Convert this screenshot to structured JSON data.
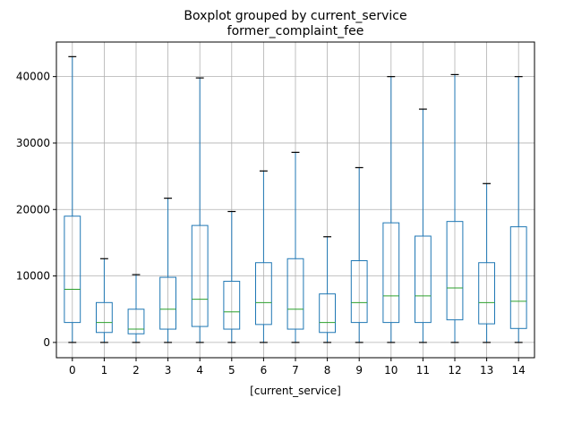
{
  "chart_data": {
    "type": "box",
    "title": "Boxplot grouped by current_service",
    "subtitle": "former_complaint_fee",
    "xlabel": "[current_service]",
    "ylabel": "",
    "ylim": [
      -2300,
      45200
    ],
    "yticks": [
      0,
      10000,
      20000,
      30000,
      40000
    ],
    "categories": [
      "0",
      "1",
      "2",
      "3",
      "4",
      "5",
      "6",
      "7",
      "8",
      "9",
      "10",
      "11",
      "12",
      "13",
      "14"
    ],
    "grid": true,
    "colors": {
      "box": "#1f77b4",
      "median": "#2ca02c",
      "whisker_cap": "#000000",
      "grid": "#b0b0b0",
      "axes": "#000000"
    },
    "boxes": [
      {
        "category": "0",
        "min": 0,
        "q1": 3000,
        "median": 8000,
        "q3": 19000,
        "max": 43000
      },
      {
        "category": "1",
        "min": 0,
        "q1": 1500,
        "median": 3000,
        "q3": 6000,
        "max": 12600
      },
      {
        "category": "2",
        "min": 0,
        "q1": 1300,
        "median": 2000,
        "q3": 5000,
        "max": 10200
      },
      {
        "category": "3",
        "min": 0,
        "q1": 2000,
        "median": 5000,
        "q3": 9800,
        "max": 21700
      },
      {
        "category": "4",
        "min": 0,
        "q1": 2400,
        "median": 6500,
        "q3": 17600,
        "max": 39800
      },
      {
        "category": "5",
        "min": 0,
        "q1": 2000,
        "median": 4600,
        "q3": 9200,
        "max": 19700
      },
      {
        "category": "6",
        "min": 0,
        "q1": 2700,
        "median": 6000,
        "q3": 12000,
        "max": 25800
      },
      {
        "category": "7",
        "min": 0,
        "q1": 2000,
        "median": 5000,
        "q3": 12600,
        "max": 28600
      },
      {
        "category": "8",
        "min": 0,
        "q1": 1500,
        "median": 3000,
        "q3": 7300,
        "max": 15900
      },
      {
        "category": "9",
        "min": 0,
        "q1": 3000,
        "median": 6000,
        "q3": 12300,
        "max": 26300
      },
      {
        "category": "10",
        "min": 0,
        "q1": 3000,
        "median": 7000,
        "q3": 18000,
        "max": 40000
      },
      {
        "category": "11",
        "min": 0,
        "q1": 3000,
        "median": 7000,
        "q3": 16000,
        "max": 35100
      },
      {
        "category": "12",
        "min": 0,
        "q1": 3400,
        "median": 8200,
        "q3": 18200,
        "max": 40300
      },
      {
        "category": "13",
        "min": 0,
        "q1": 2800,
        "median": 6000,
        "q3": 12000,
        "max": 23900
      },
      {
        "category": "14",
        "min": 0,
        "q1": 2100,
        "median": 6200,
        "q3": 17400,
        "max": 40000
      }
    ]
  }
}
